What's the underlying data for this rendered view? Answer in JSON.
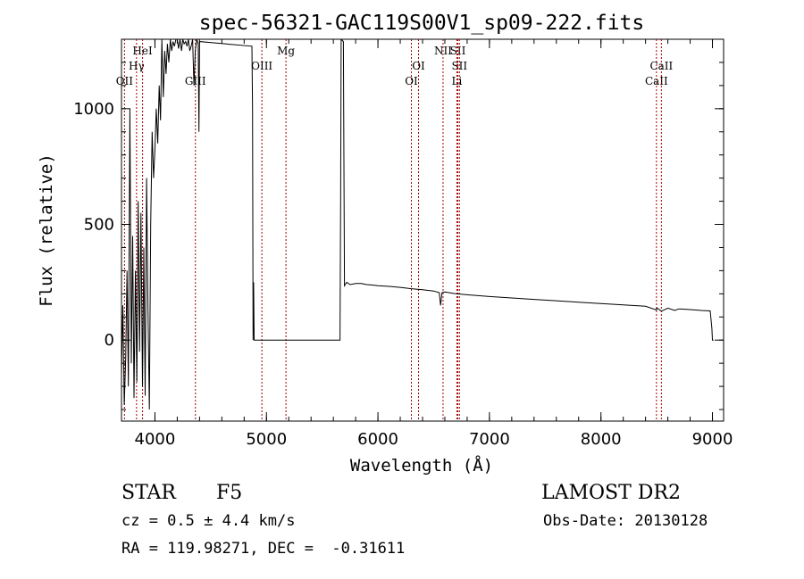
{
  "chart_data": {
    "type": "line",
    "title": "spec-56321-GAC119S00V1_sp09-222.fits",
    "xlabel": "Wavelength (Å)",
    "ylabel": "Flux (relative)",
    "xlim": [
      3700,
      9100
    ],
    "ylim": [
      -350,
      1300
    ],
    "xticks": [
      4000,
      5000,
      6000,
      7000,
      8000,
      9000
    ],
    "yticks": [
      0,
      500,
      1000
    ],
    "grid": false,
    "series": [
      {
        "x": [
          3700,
          3712,
          3725,
          3738,
          3750,
          3762,
          3775,
          3788,
          3800,
          3812,
          3825,
          3838,
          3850,
          3862,
          3875,
          3888,
          3900,
          3912,
          3925,
          3938,
          3950,
          3962,
          3975,
          3988,
          4000,
          4012,
          4025,
          4038,
          4050,
          4062,
          4075,
          4088,
          4100,
          4112,
          4125,
          4138,
          4150,
          4162,
          4175,
          4188,
          4200,
          4212,
          4225,
          4238,
          4250,
          4262,
          4275,
          4288,
          4300,
          4312,
          4325,
          4338,
          4350,
          4362,
          4375,
          4388,
          4395,
          4400,
          4870,
          4875,
          4880,
          4885,
          4890,
          5650,
          5660,
          5665,
          5670,
          5690,
          5700,
          5720,
          5750,
          5800,
          5850,
          5900,
          5950,
          6000,
          6100,
          6200,
          6300,
          6400,
          6500,
          6550,
          6562,
          6575,
          6600,
          6700,
          6800,
          6900,
          7000,
          7200,
          7400,
          7600,
          7800,
          8000,
          8200,
          8400,
          8498,
          8500,
          8542,
          8600,
          8662,
          8700,
          8800,
          8900,
          8980,
          8995,
          9000,
          9010
        ],
        "y": [
          -150,
          150,
          -280,
          -80,
          300,
          -200,
          1000,
          -100,
          450,
          -250,
          300,
          -180,
          600,
          -50,
          550,
          -200,
          400,
          -240,
          700,
          120,
          -300,
          500,
          900,
          700,
          820,
          1000,
          850,
          1100,
          950,
          1300,
          1050,
          1250,
          1150,
          1280,
          1200,
          1300,
          1250,
          1290,
          1270,
          1300,
          1300,
          1260,
          1300,
          1250,
          1300,
          1280,
          1290,
          1270,
          1300,
          1250,
          1270,
          1300,
          1100,
          1250,
          1300,
          1280,
          900,
          1290,
          1270,
          1000,
          0,
          250,
          0,
          0,
          0,
          600,
          1300,
          1290,
          235,
          250,
          240,
          245,
          245,
          240,
          238,
          235,
          232,
          228,
          222,
          218,
          212,
          205,
          150,
          205,
          208,
          200,
          196,
          192,
          188,
          182,
          176,
          170,
          164,
          158,
          152,
          146,
          130,
          140,
          125,
          138,
          128,
          135,
          132,
          128,
          126,
          50,
          0,
          0
        ]
      }
    ],
    "lines": [
      {
        "label": "OII",
        "x": 3727,
        "row": 3
      },
      {
        "label": "Hγ",
        "x": 3835,
        "row": 2
      },
      {
        "label": "HeI",
        "x": 3889,
        "row": 1
      },
      {
        "label": "GIII",
        "x": 4363,
        "row": 3
      },
      {
        "label": "OIII",
        "x": 4959,
        "row": 2
      },
      {
        "label": "Mg",
        "x": 5175,
        "row": 1
      },
      {
        "label": "OI",
        "x": 6300,
        "row": 3
      },
      {
        "label": "OI",
        "x": 6364,
        "row": 2
      },
      {
        "label": "NII",
        "x": 6584,
        "row": 1
      },
      {
        "label": "SII",
        "x": 6717,
        "row": 1
      },
      {
        "label": "SII",
        "x": 6731,
        "row": 2
      },
      {
        "label": "Li",
        "x": 6708,
        "row": 3
      },
      {
        "label": "CaII",
        "x": 8498,
        "row": 3
      },
      {
        "label": "CaII",
        "x": 8542,
        "row": 2
      }
    ]
  },
  "info": {
    "class_label": "STAR",
    "subclass": "F5",
    "survey": "LAMOST DR2",
    "cz": "cz = 0.5 ± 4.4 km/s",
    "obs_date": "Obs-Date: 20130128",
    "coords": "RA = 119.98271, DEC =  -0.31611"
  },
  "colors": {
    "line": "#000000",
    "marker": "#a00000"
  }
}
